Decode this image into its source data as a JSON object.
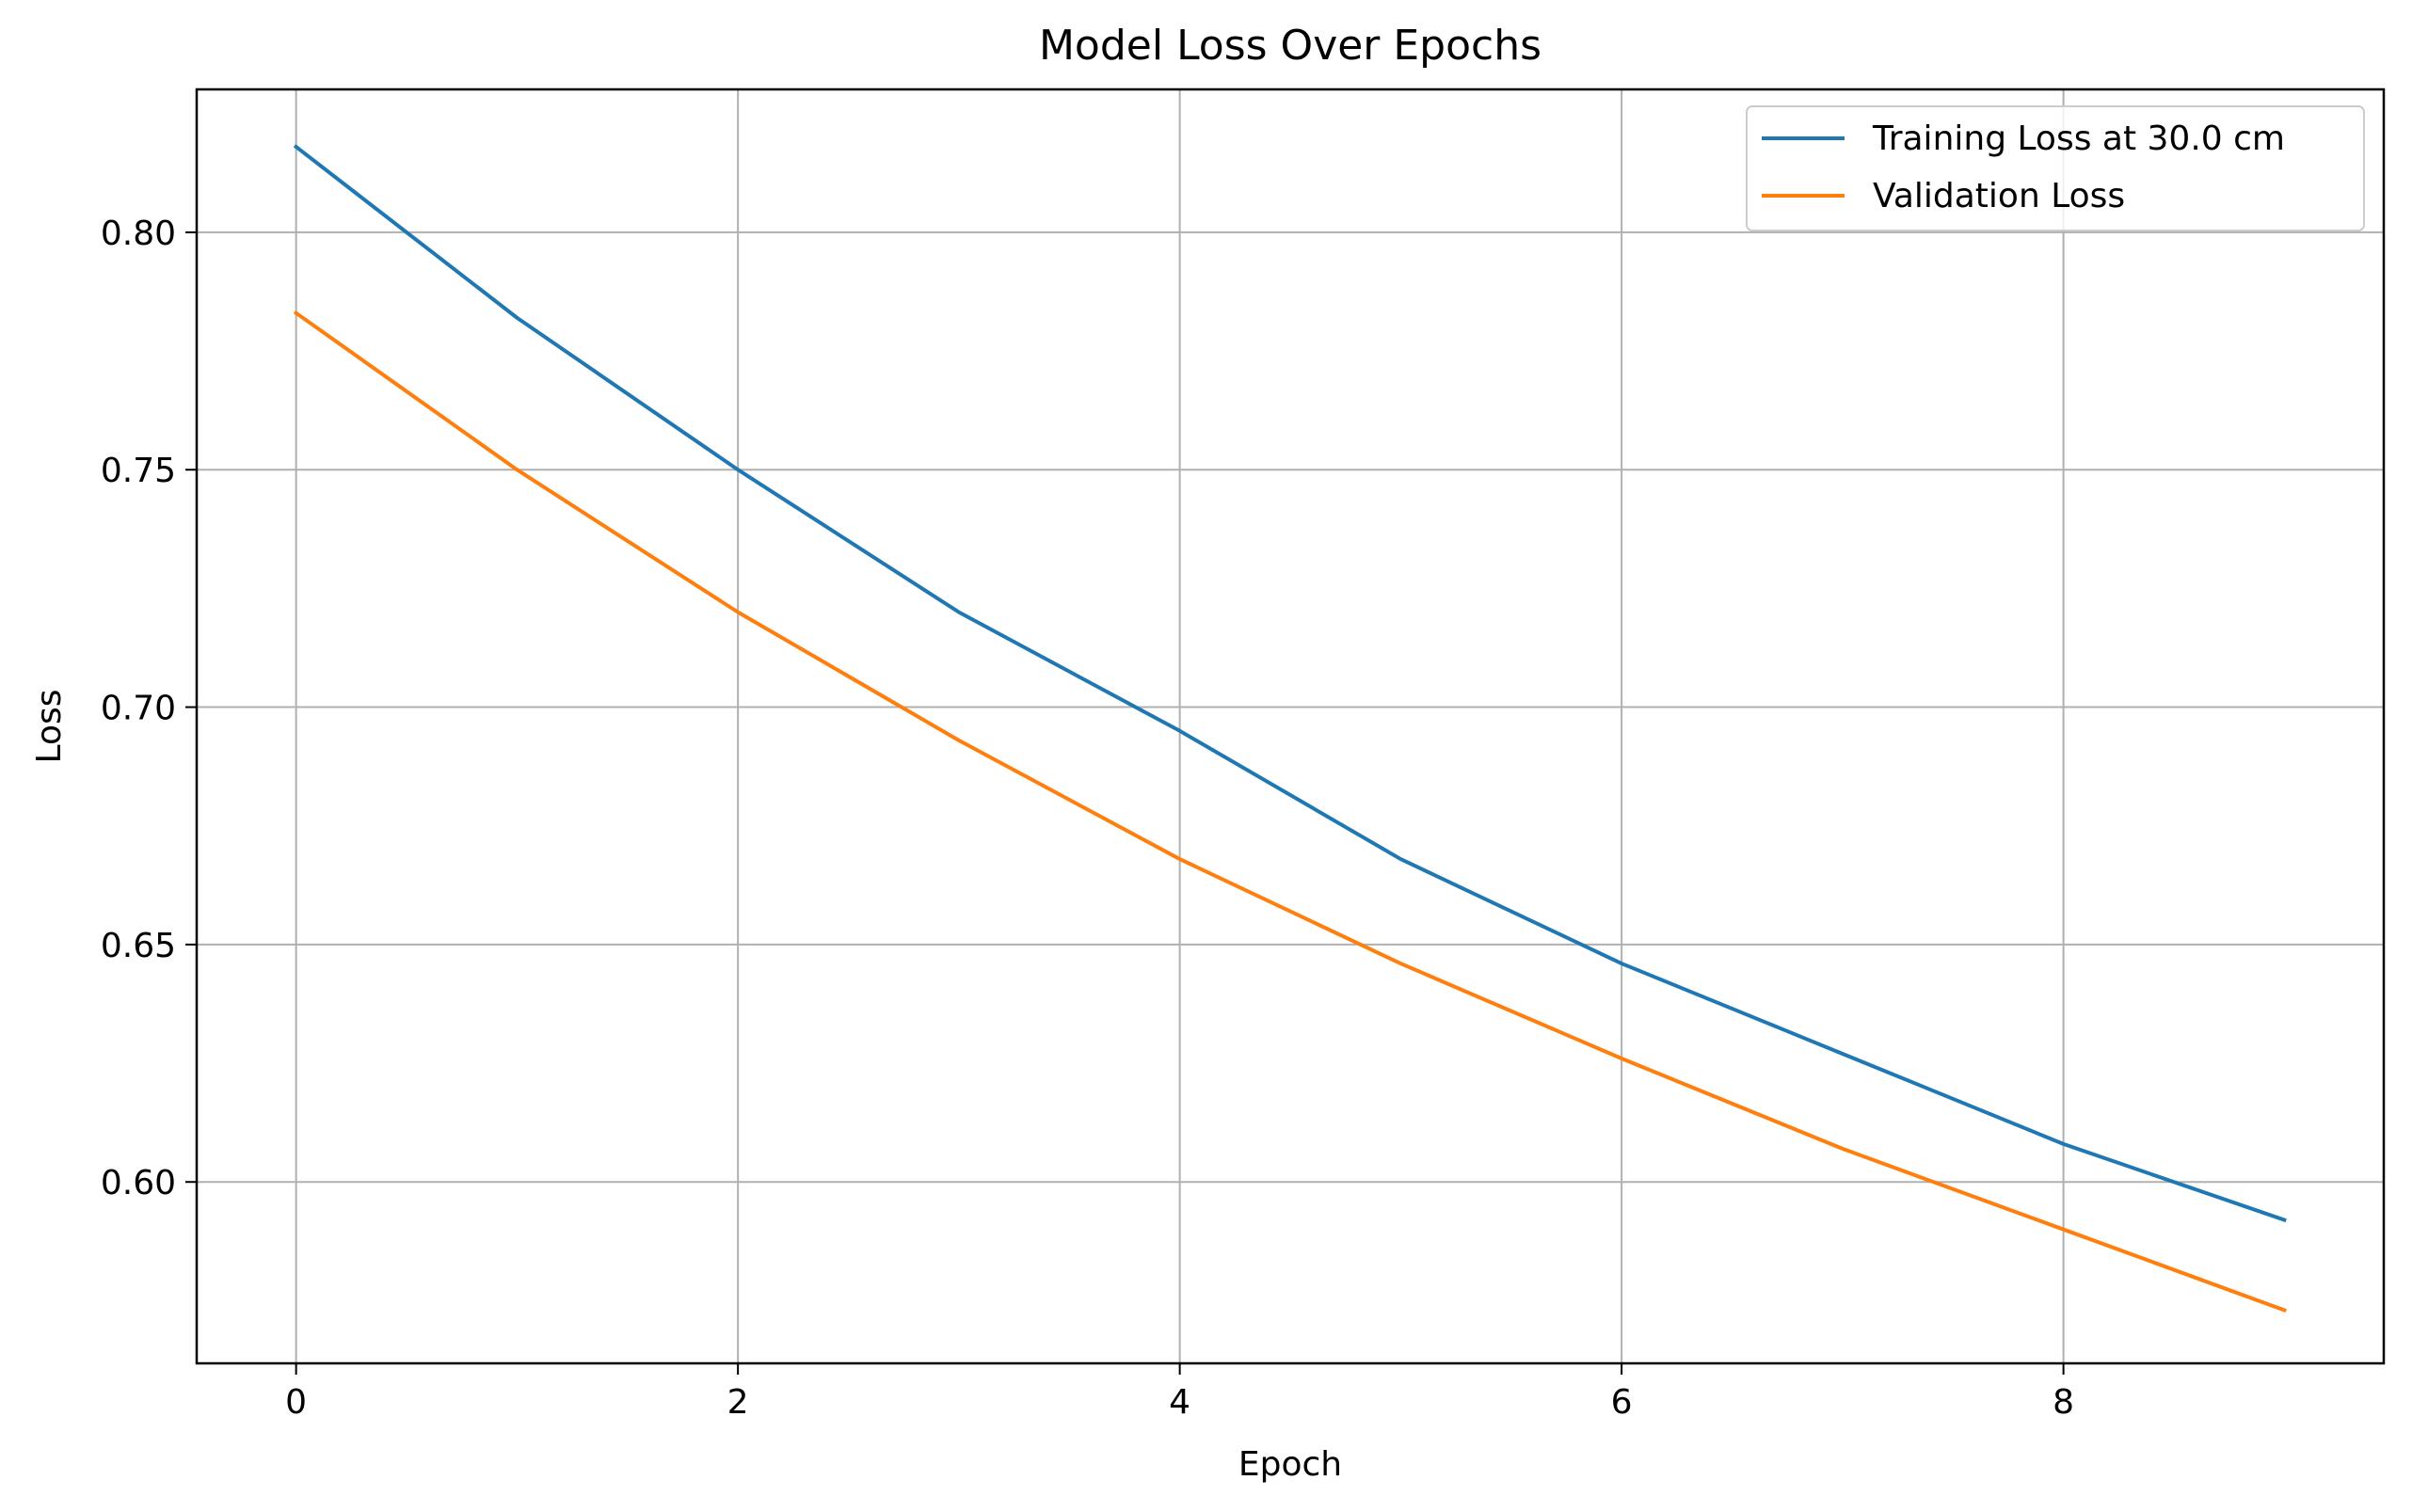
{
  "chart_data": {
    "type": "line",
    "title": "Model Loss Over Epochs",
    "xlabel": "Epoch",
    "ylabel": "Loss",
    "xlim": [
      -0.45,
      9.45
    ],
    "ylim": [
      0.5618,
      0.8301
    ],
    "xticks": [
      0,
      2,
      4,
      6,
      8
    ],
    "xtick_labels": [
      "0",
      "2",
      "4",
      "6",
      "8"
    ],
    "yticks": [
      0.6,
      0.65,
      0.7,
      0.75,
      0.8
    ],
    "ytick_labels": [
      "0.60",
      "0.65",
      "0.70",
      "0.75",
      "0.80"
    ],
    "grid": true,
    "legend_position": "top-right",
    "x": [
      0,
      1,
      2,
      3,
      4,
      5,
      6,
      7,
      8,
      9
    ],
    "series": [
      {
        "name": "Training Loss at 30.0 cm",
        "color": "#1f77b4",
        "values": [
          0.818,
          0.782,
          0.75,
          0.72,
          0.695,
          0.668,
          0.646,
          0.627,
          0.608,
          0.592
        ]
      },
      {
        "name": "Validation Loss",
        "color": "#ff7f0e",
        "values": [
          0.783,
          0.75,
          0.72,
          0.693,
          0.668,
          0.646,
          0.626,
          0.607,
          0.59,
          0.573
        ]
      }
    ]
  }
}
